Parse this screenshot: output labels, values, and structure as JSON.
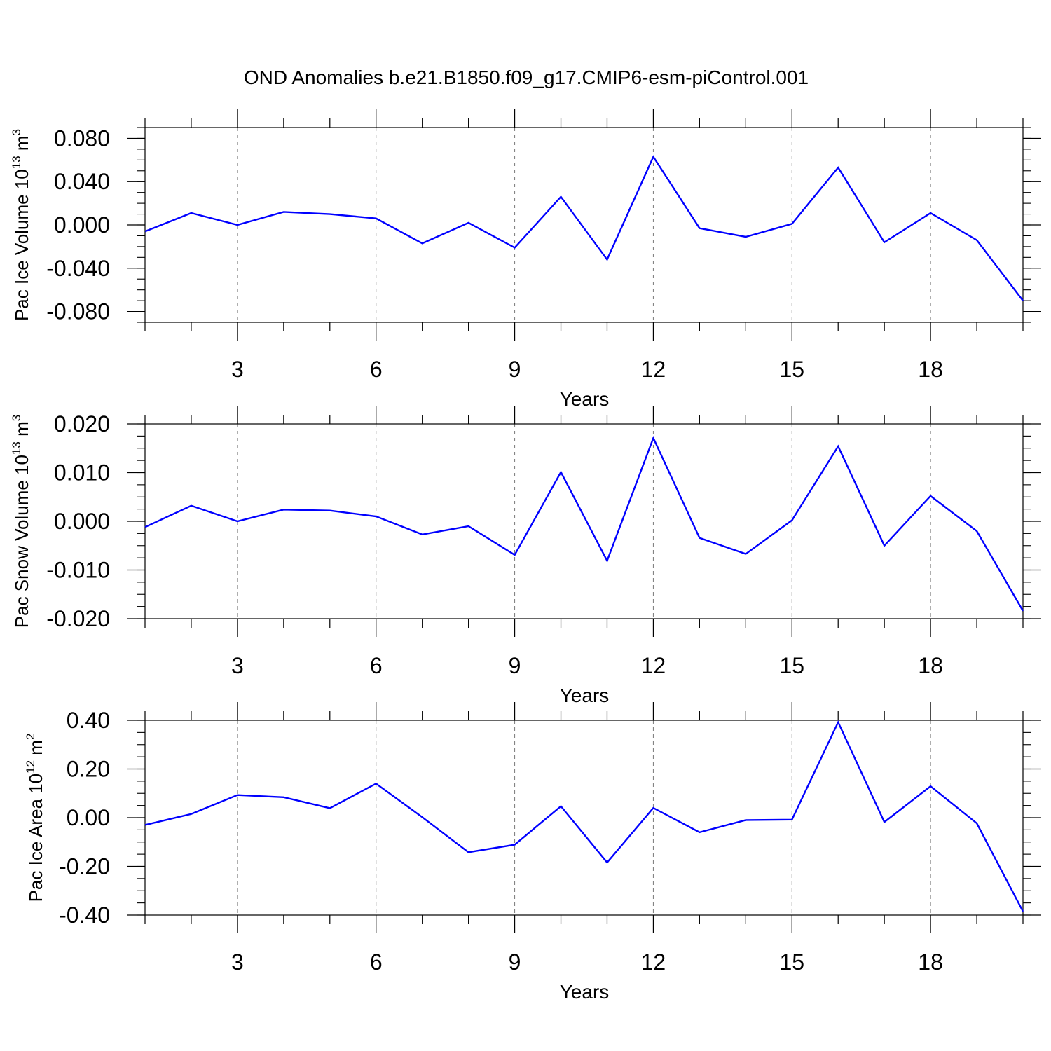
{
  "title": "OND Anomalies b.e21.B1850.f09_g17.CMIP6-esm-piControl.001",
  "chart_data": [
    {
      "type": "line",
      "title": "OND Anomalies b.e21.B1850.f09_g17.CMIP6-esm-piControl.001",
      "xlabel": "Years",
      "ylabel": {
        "prefix": "Pac Ice Volume 10",
        "exponent": "13",
        "unit": " m",
        "unit_exponent": "3"
      },
      "x": [
        1,
        2,
        3,
        4,
        5,
        6,
        7,
        8,
        9,
        10,
        11,
        12,
        13,
        14,
        15,
        16,
        17,
        18,
        19,
        20
      ],
      "series": [
        {
          "values": [
            -0.006,
            0.011,
            0.0,
            0.012,
            0.01,
            0.006,
            -0.017,
            0.002,
            -0.021,
            0.026,
            -0.032,
            0.063,
            -0.003,
            -0.011,
            0.001,
            0.053,
            -0.016,
            0.011,
            -0.014,
            -0.07
          ],
          "color": "#0000ff"
        }
      ],
      "xlim": [
        1,
        20
      ],
      "ylim": [
        -0.09,
        0.09
      ],
      "xticks": [
        3,
        6,
        9,
        12,
        15,
        18
      ],
      "xtick_labels": [
        "3",
        "6",
        "9",
        "12",
        "15",
        "18"
      ],
      "yticks": [
        -0.08,
        -0.04,
        0.0,
        0.04,
        0.08
      ],
      "ytick_labels": [
        "-0.080",
        "-0.040",
        "0.000",
        "0.040",
        "0.080"
      ],
      "yminor_step": 0.01,
      "grid": "dashed vertical at major x ticks"
    },
    {
      "type": "line",
      "xlabel": "Years",
      "ylabel": {
        "prefix": "Pac Snow Volume 10",
        "exponent": "13",
        "unit": " m",
        "unit_exponent": "3"
      },
      "x": [
        1,
        2,
        3,
        4,
        5,
        6,
        7,
        8,
        9,
        10,
        11,
        12,
        13,
        14,
        15,
        16,
        17,
        18,
        19,
        20
      ],
      "series": [
        {
          "values": [
            -0.0012,
            0.0032,
            0.0,
            0.0024,
            0.0022,
            0.001,
            -0.0027,
            -0.001,
            -0.0069,
            0.0101,
            -0.0081,
            0.0171,
            -0.0034,
            -0.0067,
            0.0002,
            0.0154,
            -0.005,
            0.0052,
            -0.002,
            -0.0184
          ],
          "color": "#0000ff"
        }
      ],
      "xlim": [
        1,
        20
      ],
      "ylim": [
        -0.02,
        0.02
      ],
      "xticks": [
        3,
        6,
        9,
        12,
        15,
        18
      ],
      "xtick_labels": [
        "3",
        "6",
        "9",
        "12",
        "15",
        "18"
      ],
      "yticks": [
        -0.02,
        -0.01,
        0.0,
        0.01,
        0.02
      ],
      "ytick_labels": [
        "-0.020",
        "-0.010",
        "0.000",
        "0.010",
        "0.020"
      ],
      "yminor_step": 0.0025,
      "grid": "dashed vertical at major x ticks"
    },
    {
      "type": "line",
      "xlabel": "Years",
      "ylabel": {
        "prefix": "Pac Ice Area 10",
        "exponent": "12",
        "unit": " m",
        "unit_exponent": "2"
      },
      "x": [
        1,
        2,
        3,
        4,
        5,
        6,
        7,
        8,
        9,
        10,
        11,
        12,
        13,
        14,
        15,
        16,
        17,
        18,
        19,
        20
      ],
      "series": [
        {
          "values": [
            -0.03,
            0.015,
            0.093,
            0.084,
            0.039,
            0.14,
            0.002,
            -0.142,
            -0.111,
            0.047,
            -0.184,
            0.04,
            -0.06,
            -0.01,
            -0.008,
            0.392,
            -0.018,
            0.129,
            -0.023,
            -0.385
          ],
          "color": "#0000ff"
        }
      ],
      "xlim": [
        1,
        20
      ],
      "ylim": [
        -0.4,
        0.4
      ],
      "xticks": [
        3,
        6,
        9,
        12,
        15,
        18
      ],
      "xtick_labels": [
        "3",
        "6",
        "9",
        "12",
        "15",
        "18"
      ],
      "yticks": [
        -0.4,
        -0.2,
        0.0,
        0.2,
        0.4
      ],
      "ytick_labels": [
        "-0.40",
        "-0.20",
        "0.00",
        "0.20",
        "0.40"
      ],
      "yminor_step": 0.05,
      "grid": "dashed vertical at major x ticks"
    }
  ]
}
